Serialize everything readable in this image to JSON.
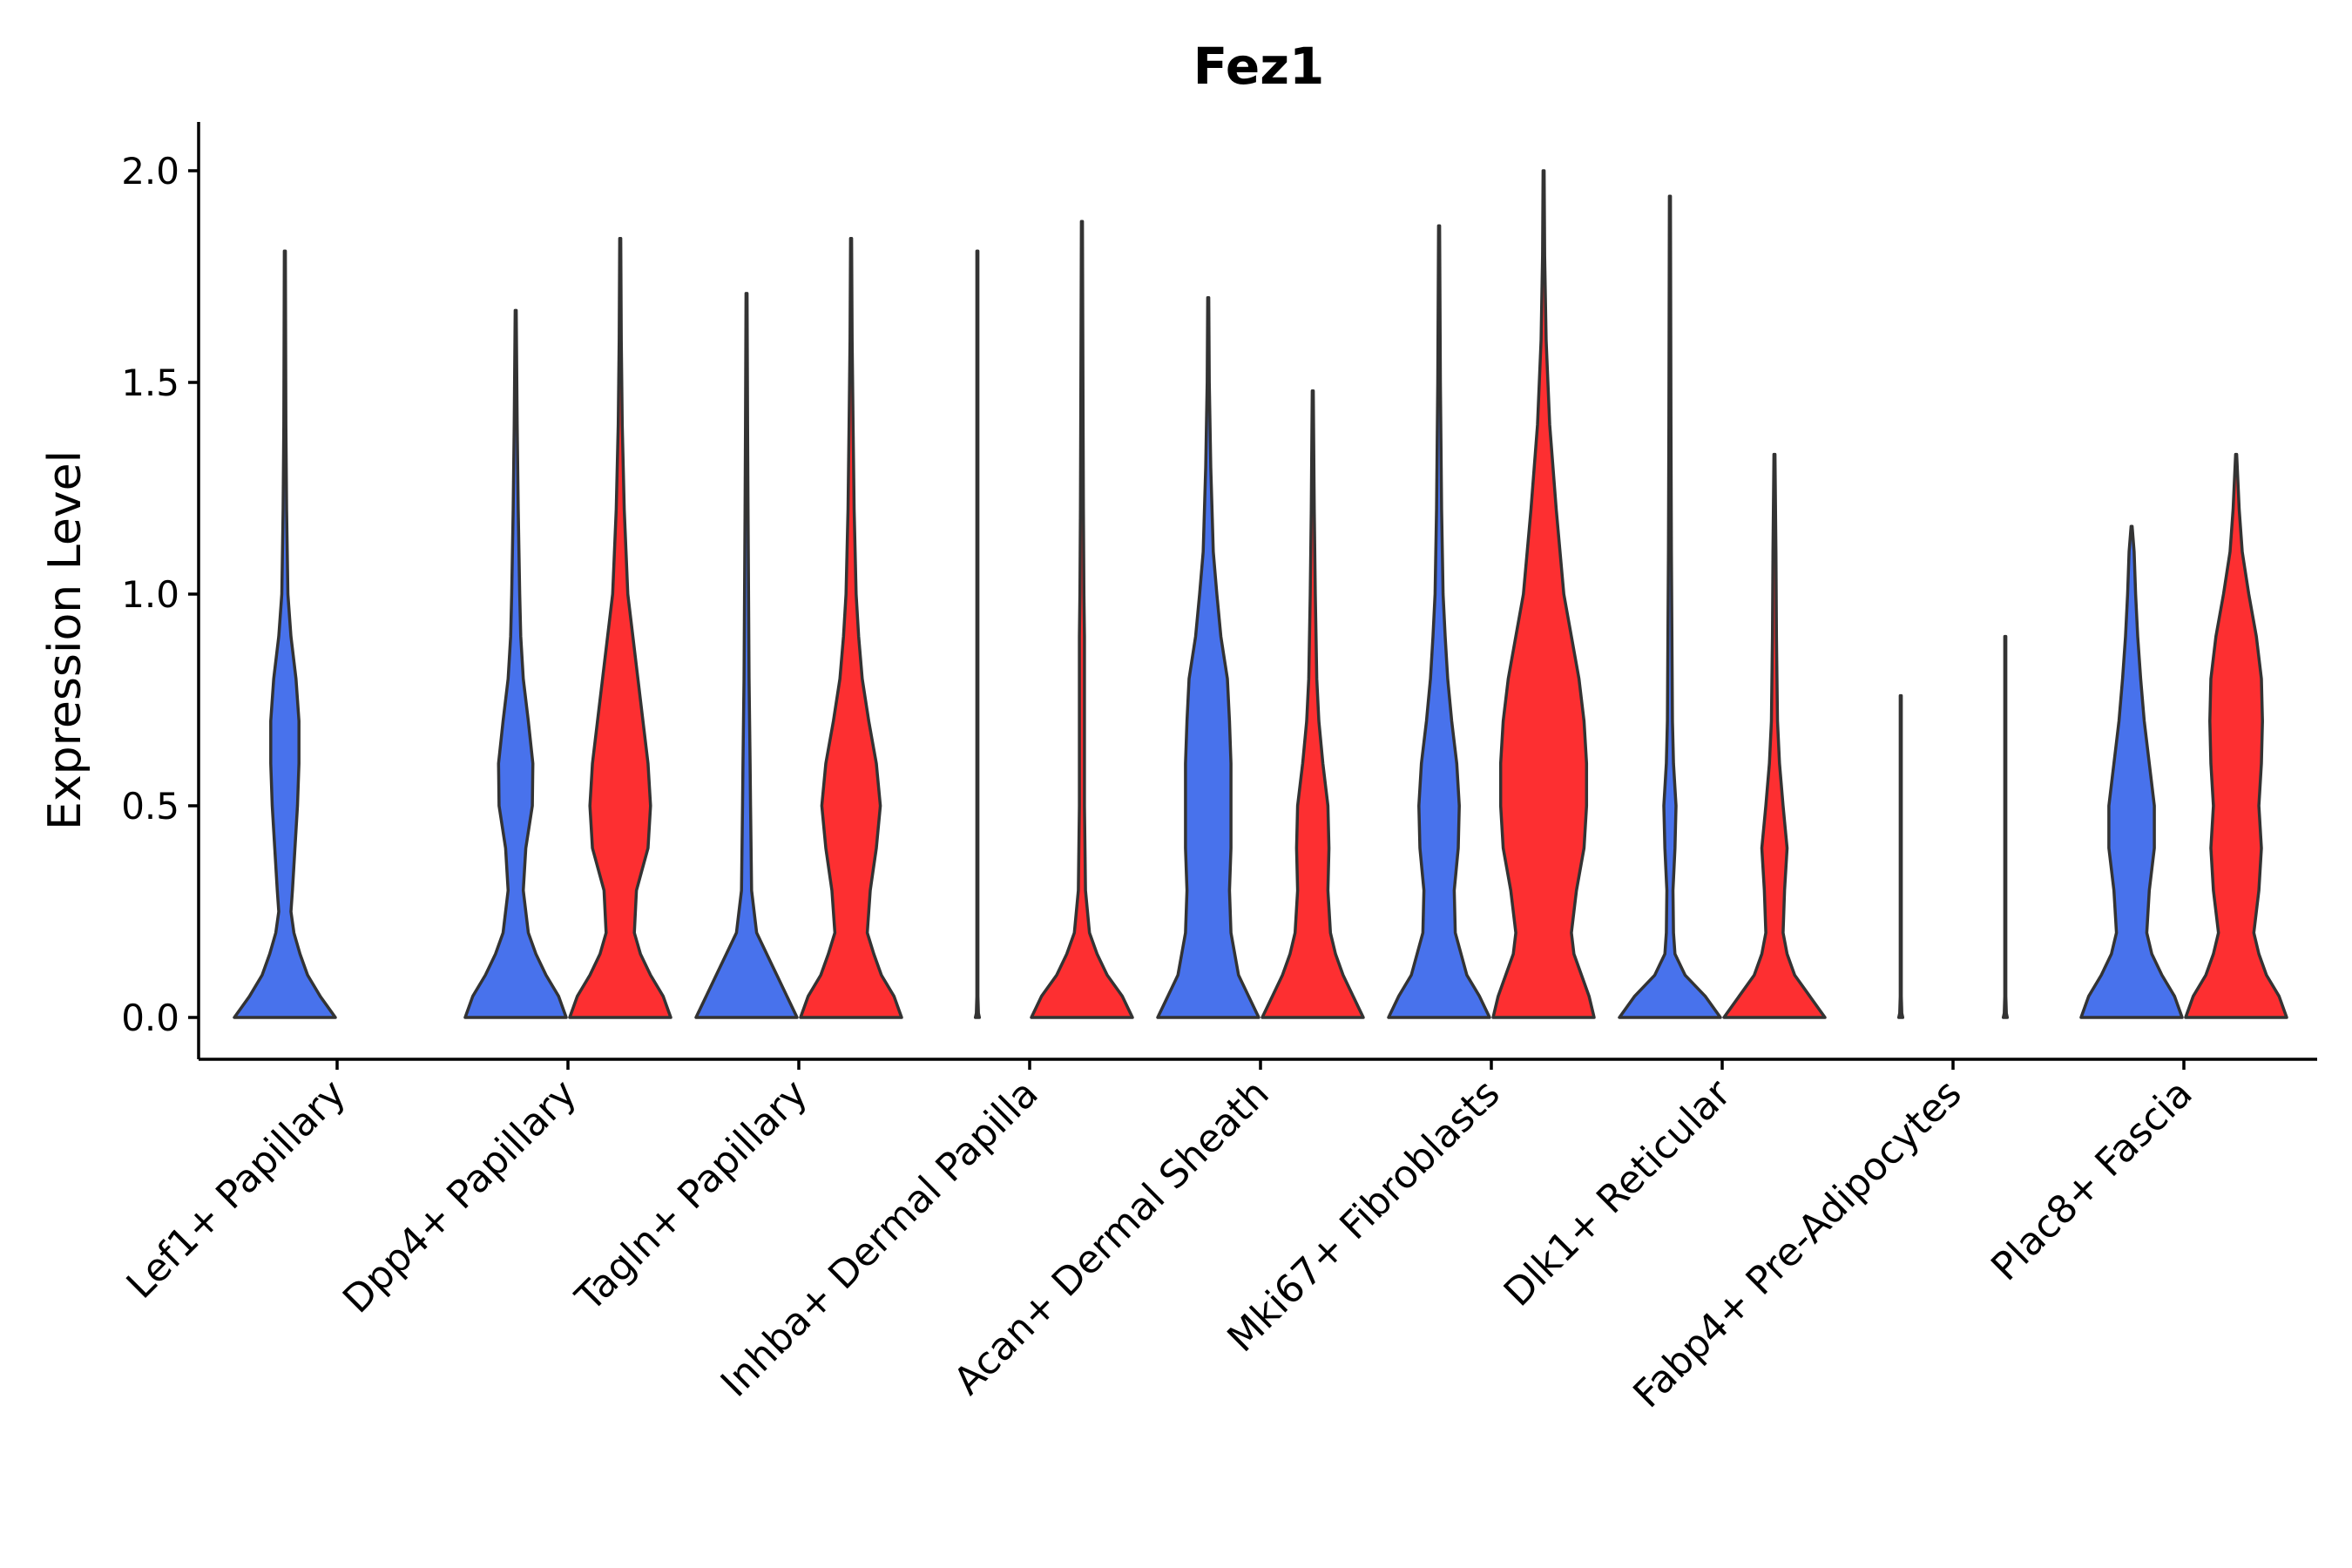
{
  "chart_data": {
    "type": "violin",
    "title": "Fez1",
    "xlabel": "",
    "ylabel": "Expression Level",
    "ylim": [
      -0.1,
      2.1
    ],
    "yticks": [
      0.0,
      0.5,
      1.0,
      1.5,
      2.0
    ],
    "ytick_labels": [
      "0.0",
      "0.5",
      "1.0",
      "1.5",
      "2.0"
    ],
    "grid": false,
    "legend": "none",
    "colors": {
      "group1": "#4872ec",
      "group2": "#fd2f31",
      "outline": "#333333"
    },
    "categories": [
      "Lef1+ Papillary",
      "Dpp4+ Papillary",
      "Tagln+ Papillary",
      "Inhba+ Dermal Papilla",
      "Acan+ Dermal Sheath",
      "Mki67+ Fibroblasts",
      "Dlk1+ Reticular",
      "Fabp4+ Pre-Adipocytes",
      "Plac8+ Fascia"
    ],
    "series": [
      {
        "name": "group1",
        "color": "#4872ec",
        "max_values": [
          1.81,
          1.67,
          1.71,
          1.81,
          1.7,
          1.87,
          1.94,
          0.76,
          1.16
        ],
        "density_profiles": [
          [
            [
              0.0,
              1.0
            ],
            [
              0.05,
              0.7
            ],
            [
              0.1,
              0.45
            ],
            [
              0.15,
              0.3
            ],
            [
              0.2,
              0.18
            ],
            [
              0.25,
              0.12
            ],
            [
              0.3,
              0.15
            ],
            [
              0.4,
              0.2
            ],
            [
              0.5,
              0.25
            ],
            [
              0.6,
              0.28
            ],
            [
              0.7,
              0.28
            ],
            [
              0.8,
              0.22
            ],
            [
              0.9,
              0.12
            ],
            [
              1.0,
              0.06
            ],
            [
              1.2,
              0.035
            ],
            [
              1.4,
              0.02
            ],
            [
              1.6,
              0.015
            ],
            [
              1.81,
              0.0
            ]
          ],
          [
            [
              0.0,
              1.0
            ],
            [
              0.05,
              0.85
            ],
            [
              0.1,
              0.6
            ],
            [
              0.15,
              0.4
            ],
            [
              0.2,
              0.25
            ],
            [
              0.3,
              0.15
            ],
            [
              0.4,
              0.2
            ],
            [
              0.5,
              0.33
            ],
            [
              0.6,
              0.34
            ],
            [
              0.7,
              0.25
            ],
            [
              0.8,
              0.15
            ],
            [
              0.9,
              0.1
            ],
            [
              1.0,
              0.08
            ],
            [
              1.2,
              0.05
            ],
            [
              1.4,
              0.03
            ],
            [
              1.67,
              0.0
            ]
          ],
          [
            [
              0.0,
              1.0
            ],
            [
              0.05,
              0.8
            ],
            [
              0.1,
              0.6
            ],
            [
              0.15,
              0.4
            ],
            [
              0.2,
              0.2
            ],
            [
              0.3,
              0.1
            ],
            [
              0.5,
              0.08
            ],
            [
              0.6,
              0.07
            ],
            [
              0.8,
              0.05
            ],
            [
              1.0,
              0.04
            ],
            [
              1.2,
              0.03
            ],
            [
              1.4,
              0.02
            ],
            [
              1.71,
              0.0
            ]
          ],
          [
            [
              0.0,
              0.04
            ],
            [
              0.01,
              0.02
            ],
            [
              0.05,
              0.01
            ],
            [
              1.81,
              0.0
            ]
          ],
          [
            [
              0.0,
              1.0
            ],
            [
              0.05,
              0.8
            ],
            [
              0.1,
              0.6
            ],
            [
              0.2,
              0.45
            ],
            [
              0.3,
              0.42
            ],
            [
              0.4,
              0.45
            ],
            [
              0.5,
              0.45
            ],
            [
              0.6,
              0.45
            ],
            [
              0.7,
              0.42
            ],
            [
              0.8,
              0.38
            ],
            [
              0.9,
              0.25
            ],
            [
              1.0,
              0.17
            ],
            [
              1.1,
              0.1
            ],
            [
              1.3,
              0.05
            ],
            [
              1.5,
              0.02
            ],
            [
              1.7,
              0.0
            ]
          ],
          [
            [
              0.0,
              1.0
            ],
            [
              0.05,
              0.8
            ],
            [
              0.1,
              0.55
            ],
            [
              0.2,
              0.32
            ],
            [
              0.3,
              0.3
            ],
            [
              0.4,
              0.38
            ],
            [
              0.5,
              0.4
            ],
            [
              0.6,
              0.35
            ],
            [
              0.7,
              0.25
            ],
            [
              0.8,
              0.17
            ],
            [
              0.9,
              0.12
            ],
            [
              1.0,
              0.08
            ],
            [
              1.2,
              0.05
            ],
            [
              1.5,
              0.025
            ],
            [
              1.87,
              0.0
            ]
          ],
          [
            [
              0.0,
              1.0
            ],
            [
              0.05,
              0.7
            ],
            [
              0.1,
              0.3
            ],
            [
              0.15,
              0.1
            ],
            [
              0.2,
              0.07
            ],
            [
              0.3,
              0.06
            ],
            [
              0.4,
              0.1
            ],
            [
              0.5,
              0.12
            ],
            [
              0.6,
              0.07
            ],
            [
              0.7,
              0.05
            ],
            [
              0.9,
              0.04
            ],
            [
              1.1,
              0.03
            ],
            [
              1.4,
              0.02
            ],
            [
              1.94,
              0.0
            ]
          ],
          [
            [
              0.0,
              0.04
            ],
            [
              0.01,
              0.02
            ],
            [
              0.05,
              0.01
            ],
            [
              0.76,
              0.0
            ]
          ],
          [
            [
              0.0,
              1.0
            ],
            [
              0.05,
              0.85
            ],
            [
              0.1,
              0.6
            ],
            [
              0.15,
              0.4
            ],
            [
              0.2,
              0.3
            ],
            [
              0.3,
              0.35
            ],
            [
              0.4,
              0.45
            ],
            [
              0.5,
              0.45
            ],
            [
              0.6,
              0.35
            ],
            [
              0.7,
              0.25
            ],
            [
              0.8,
              0.18
            ],
            [
              0.9,
              0.12
            ],
            [
              1.0,
              0.08
            ],
            [
              1.1,
              0.05
            ],
            [
              1.16,
              0.0
            ]
          ]
        ]
      },
      {
        "name": "group2",
        "color": "#fd2f31",
        "max_values": [
          null,
          1.84,
          1.84,
          1.88,
          1.48,
          2.0,
          1.33,
          0.9,
          1.33
        ],
        "density_profiles": [
          null,
          [
            [
              0.0,
              1.0
            ],
            [
              0.05,
              0.85
            ],
            [
              0.1,
              0.6
            ],
            [
              0.15,
              0.4
            ],
            [
              0.2,
              0.28
            ],
            [
              0.3,
              0.32
            ],
            [
              0.4,
              0.55
            ],
            [
              0.5,
              0.6
            ],
            [
              0.6,
              0.55
            ],
            [
              0.7,
              0.45
            ],
            [
              0.8,
              0.35
            ],
            [
              0.9,
              0.25
            ],
            [
              1.0,
              0.15
            ],
            [
              1.2,
              0.08
            ],
            [
              1.4,
              0.04
            ],
            [
              1.6,
              0.02
            ],
            [
              1.84,
              0.0
            ]
          ],
          [
            [
              0.0,
              1.0
            ],
            [
              0.05,
              0.85
            ],
            [
              0.1,
              0.6
            ],
            [
              0.15,
              0.45
            ],
            [
              0.2,
              0.32
            ],
            [
              0.3,
              0.38
            ],
            [
              0.4,
              0.5
            ],
            [
              0.5,
              0.58
            ],
            [
              0.6,
              0.5
            ],
            [
              0.7,
              0.35
            ],
            [
              0.8,
              0.22
            ],
            [
              0.9,
              0.15
            ],
            [
              1.0,
              0.1
            ],
            [
              1.2,
              0.06
            ],
            [
              1.4,
              0.04
            ],
            [
              1.6,
              0.02
            ],
            [
              1.84,
              0.0
            ]
          ],
          [
            [
              0.0,
              1.0
            ],
            [
              0.05,
              0.8
            ],
            [
              0.1,
              0.5
            ],
            [
              0.15,
              0.3
            ],
            [
              0.2,
              0.15
            ],
            [
              0.3,
              0.07
            ],
            [
              0.5,
              0.05
            ],
            [
              0.7,
              0.05
            ],
            [
              0.9,
              0.05
            ],
            [
              1.0,
              0.04
            ],
            [
              1.2,
              0.03
            ],
            [
              1.5,
              0.02
            ],
            [
              1.88,
              0.0
            ]
          ],
          [
            [
              0.0,
              1.0
            ],
            [
              0.05,
              0.8
            ],
            [
              0.1,
              0.6
            ],
            [
              0.15,
              0.45
            ],
            [
              0.2,
              0.35
            ],
            [
              0.3,
              0.3
            ],
            [
              0.4,
              0.32
            ],
            [
              0.5,
              0.3
            ],
            [
              0.6,
              0.2
            ],
            [
              0.7,
              0.12
            ],
            [
              0.8,
              0.08
            ],
            [
              1.0,
              0.05
            ],
            [
              1.2,
              0.03
            ],
            [
              1.48,
              0.0
            ]
          ],
          [
            [
              0.0,
              1.0
            ],
            [
              0.05,
              0.9
            ],
            [
              0.1,
              0.75
            ],
            [
              0.15,
              0.6
            ],
            [
              0.2,
              0.55
            ],
            [
              0.3,
              0.65
            ],
            [
              0.4,
              0.8
            ],
            [
              0.5,
              0.85
            ],
            [
              0.6,
              0.85
            ],
            [
              0.7,
              0.8
            ],
            [
              0.8,
              0.7
            ],
            [
              0.9,
              0.55
            ],
            [
              1.0,
              0.4
            ],
            [
              1.2,
              0.25
            ],
            [
              1.4,
              0.12
            ],
            [
              1.6,
              0.05
            ],
            [
              1.8,
              0.02
            ],
            [
              2.0,
              0.0
            ]
          ],
          [
            [
              0.0,
              1.0
            ],
            [
              0.05,
              0.7
            ],
            [
              0.1,
              0.4
            ],
            [
              0.15,
              0.25
            ],
            [
              0.2,
              0.17
            ],
            [
              0.3,
              0.2
            ],
            [
              0.4,
              0.25
            ],
            [
              0.5,
              0.17
            ],
            [
              0.6,
              0.1
            ],
            [
              0.7,
              0.06
            ],
            [
              0.9,
              0.04
            ],
            [
              1.1,
              0.03
            ],
            [
              1.33,
              0.0
            ]
          ],
          [
            [
              0.0,
              0.04
            ],
            [
              0.01,
              0.02
            ],
            [
              0.05,
              0.01
            ],
            [
              0.9,
              0.0
            ]
          ],
          [
            [
              0.0,
              1.0
            ],
            [
              0.05,
              0.85
            ],
            [
              0.1,
              0.6
            ],
            [
              0.15,
              0.45
            ],
            [
              0.2,
              0.35
            ],
            [
              0.3,
              0.45
            ],
            [
              0.4,
              0.5
            ],
            [
              0.5,
              0.45
            ],
            [
              0.6,
              0.5
            ],
            [
              0.7,
              0.52
            ],
            [
              0.8,
              0.5
            ],
            [
              0.9,
              0.4
            ],
            [
              1.0,
              0.25
            ],
            [
              1.1,
              0.12
            ],
            [
              1.2,
              0.06
            ],
            [
              1.33,
              0.0
            ]
          ]
        ]
      }
    ]
  }
}
